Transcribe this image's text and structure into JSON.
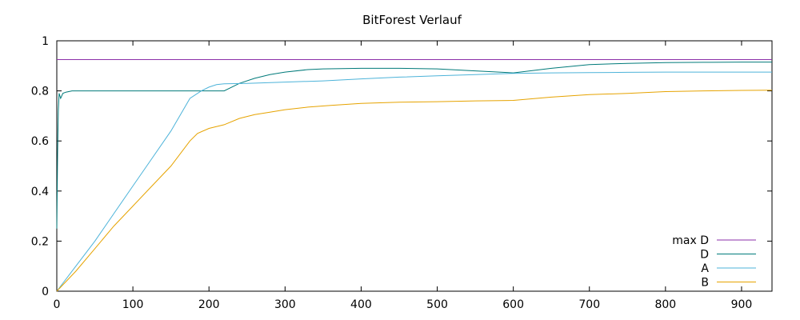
{
  "chart_data": {
    "type": "line",
    "title": "BitForest Verlauf",
    "xlabel": "",
    "ylabel": "",
    "xlim": [
      0,
      940
    ],
    "ylim": [
      0,
      1
    ],
    "x_ticks": [
      0,
      100,
      200,
      300,
      400,
      500,
      600,
      700,
      800,
      900
    ],
    "y_ticks": [
      0,
      0.2,
      0.4,
      0.6,
      0.8,
      1
    ],
    "grid": false,
    "legend_position": "bottom-right",
    "series": [
      {
        "name": "max D",
        "color": "#8b2fa8",
        "x": [
          0,
          940
        ],
        "y": [
          0.925,
          0.925
        ]
      },
      {
        "name": "D",
        "color": "#007a7a",
        "x": [
          0,
          1,
          2,
          3,
          5,
          8,
          12,
          20,
          50,
          100,
          150,
          200,
          220,
          240,
          260,
          280,
          300,
          330,
          350,
          400,
          450,
          500,
          550,
          600,
          650,
          700,
          750,
          800,
          850,
          900,
          940
        ],
        "y": [
          0.25,
          0.55,
          0.72,
          0.79,
          0.77,
          0.79,
          0.795,
          0.8,
          0.8,
          0.8,
          0.8,
          0.8,
          0.8,
          0.83,
          0.85,
          0.865,
          0.875,
          0.885,
          0.888,
          0.89,
          0.89,
          0.888,
          0.88,
          0.872,
          0.89,
          0.905,
          0.91,
          0.913,
          0.914,
          0.915,
          0.915
        ]
      },
      {
        "name": "A",
        "color": "#4db3d9",
        "x": [
          0,
          25,
          50,
          75,
          100,
          125,
          150,
          175,
          190,
          200,
          210,
          220,
          250,
          300,
          350,
          400,
          450,
          500,
          550,
          600,
          650,
          700,
          750,
          800,
          850,
          900,
          940
        ],
        "y": [
          0.0,
          0.1,
          0.2,
          0.31,
          0.42,
          0.53,
          0.64,
          0.77,
          0.8,
          0.815,
          0.825,
          0.828,
          0.83,
          0.835,
          0.84,
          0.848,
          0.855,
          0.86,
          0.865,
          0.87,
          0.872,
          0.873,
          0.874,
          0.875,
          0.875,
          0.875,
          0.875
        ]
      },
      {
        "name": "B",
        "color": "#e6a300",
        "x": [
          0,
          25,
          50,
          75,
          100,
          125,
          150,
          175,
          185,
          200,
          220,
          240,
          260,
          280,
          300,
          330,
          360,
          400,
          450,
          500,
          550,
          600,
          650,
          700,
          750,
          800,
          850,
          900,
          940
        ],
        "y": [
          0.0,
          0.08,
          0.17,
          0.26,
          0.34,
          0.42,
          0.5,
          0.6,
          0.63,
          0.65,
          0.665,
          0.69,
          0.705,
          0.715,
          0.725,
          0.735,
          0.742,
          0.75,
          0.755,
          0.757,
          0.76,
          0.762,
          0.775,
          0.785,
          0.79,
          0.797,
          0.8,
          0.802,
          0.803
        ]
      }
    ]
  }
}
